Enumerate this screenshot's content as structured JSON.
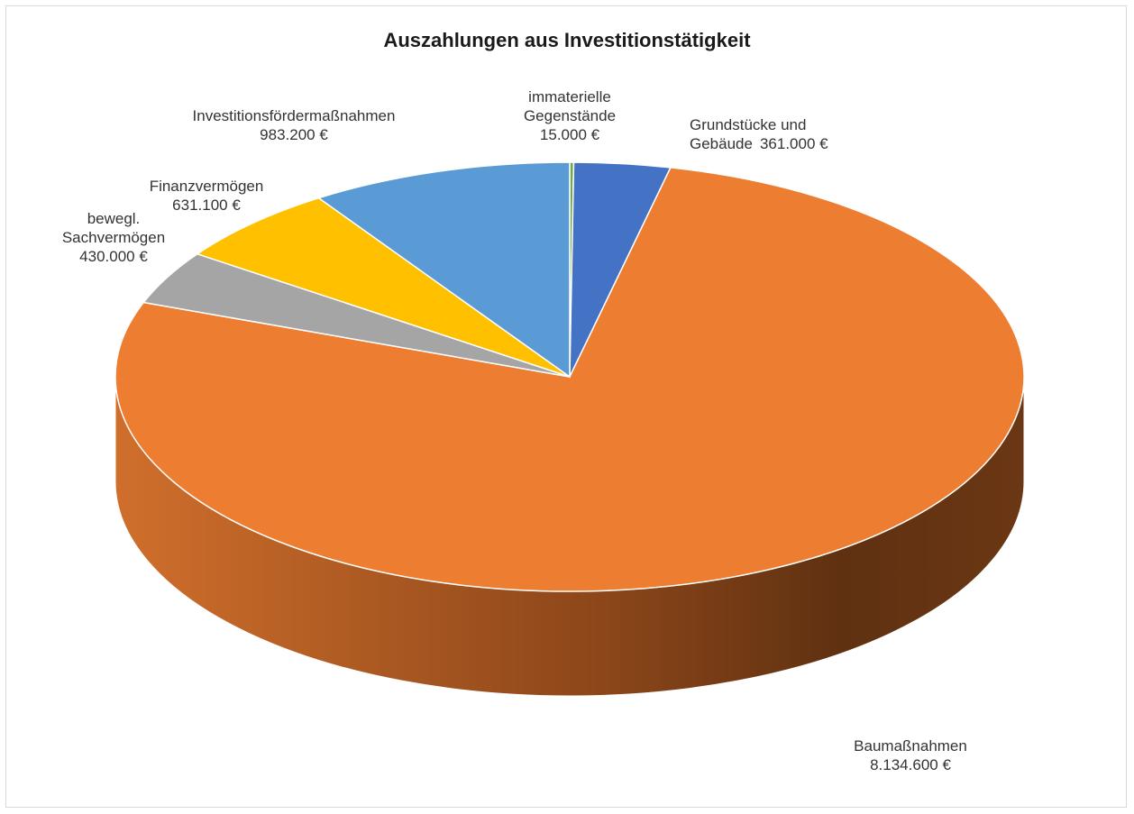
{
  "chart_data": {
    "type": "pie",
    "title": "Auszahlungen aus Investitionstätigkeit",
    "categories": [
      "immaterielle Gegenstände",
      "Grundstücke und Gebäude",
      "Baumaßnahmen",
      "bewegl. Sachvermögen",
      "Finanzvermögen",
      "Investitionsfördermaßnahmen"
    ],
    "values": [
      15000,
      361000,
      8134600,
      430000,
      631100,
      983200
    ],
    "value_labels": [
      "15.000 €",
      "361.000 €",
      "8.134.600 €",
      "430.000 €",
      "631.100 €",
      "983.200 €"
    ],
    "colors": [
      "#70ad47",
      "#4472c4",
      "#ed7d31",
      "#a5a5a5",
      "#ffc000",
      "#5b9bd5"
    ]
  }
}
